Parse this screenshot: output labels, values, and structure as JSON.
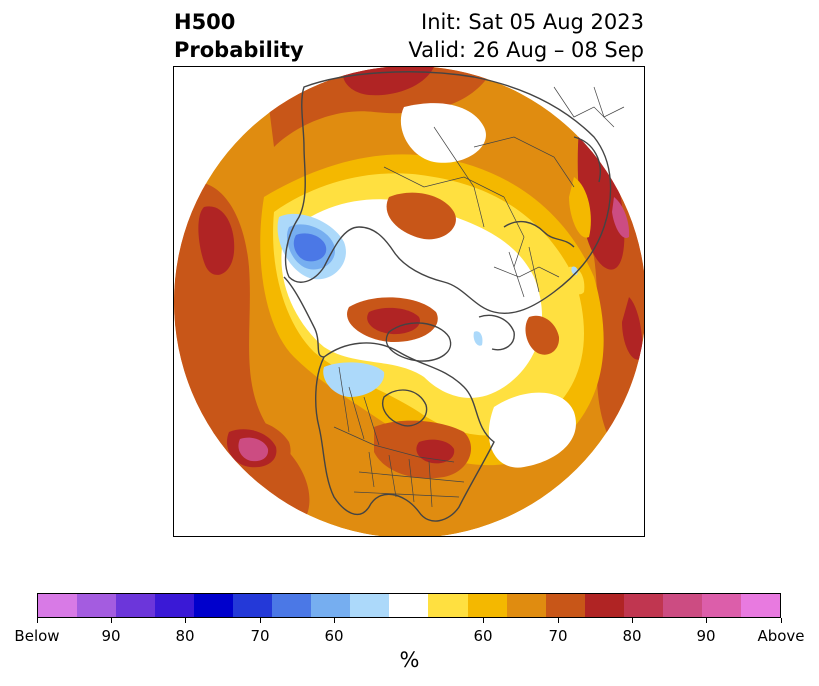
{
  "title": {
    "left_line1": "H500",
    "left_line2": "Probability",
    "right_line1": "Init: Sat 05 Aug 2023",
    "right_line2": "Valid: 26 Aug – 08 Sep"
  },
  "map": {
    "projection": "north-polar-stereographic",
    "features": [
      "coastlines",
      "country-borders",
      "us-state-borders",
      "canada-province-borders"
    ]
  },
  "colorbar": {
    "units_label": "%",
    "colors": [
      "#d87ae6",
      "#a45ce0",
      "#6c36da",
      "#3a19d6",
      "#0000cc",
      "#2439d8",
      "#4b78e6",
      "#76aef0",
      "#acd9fa",
      "#ffffff",
      "#ffe040",
      "#f4b800",
      "#e08c10",
      "#c85618",
      "#b02424",
      "#c03650",
      "#cc4c82",
      "#dc5eaa",
      "#e87ae0"
    ],
    "tick_labels": [
      "Below",
      "90",
      "80",
      "70",
      "60",
      "60",
      "70",
      "80",
      "90",
      "Above"
    ]
  }
}
